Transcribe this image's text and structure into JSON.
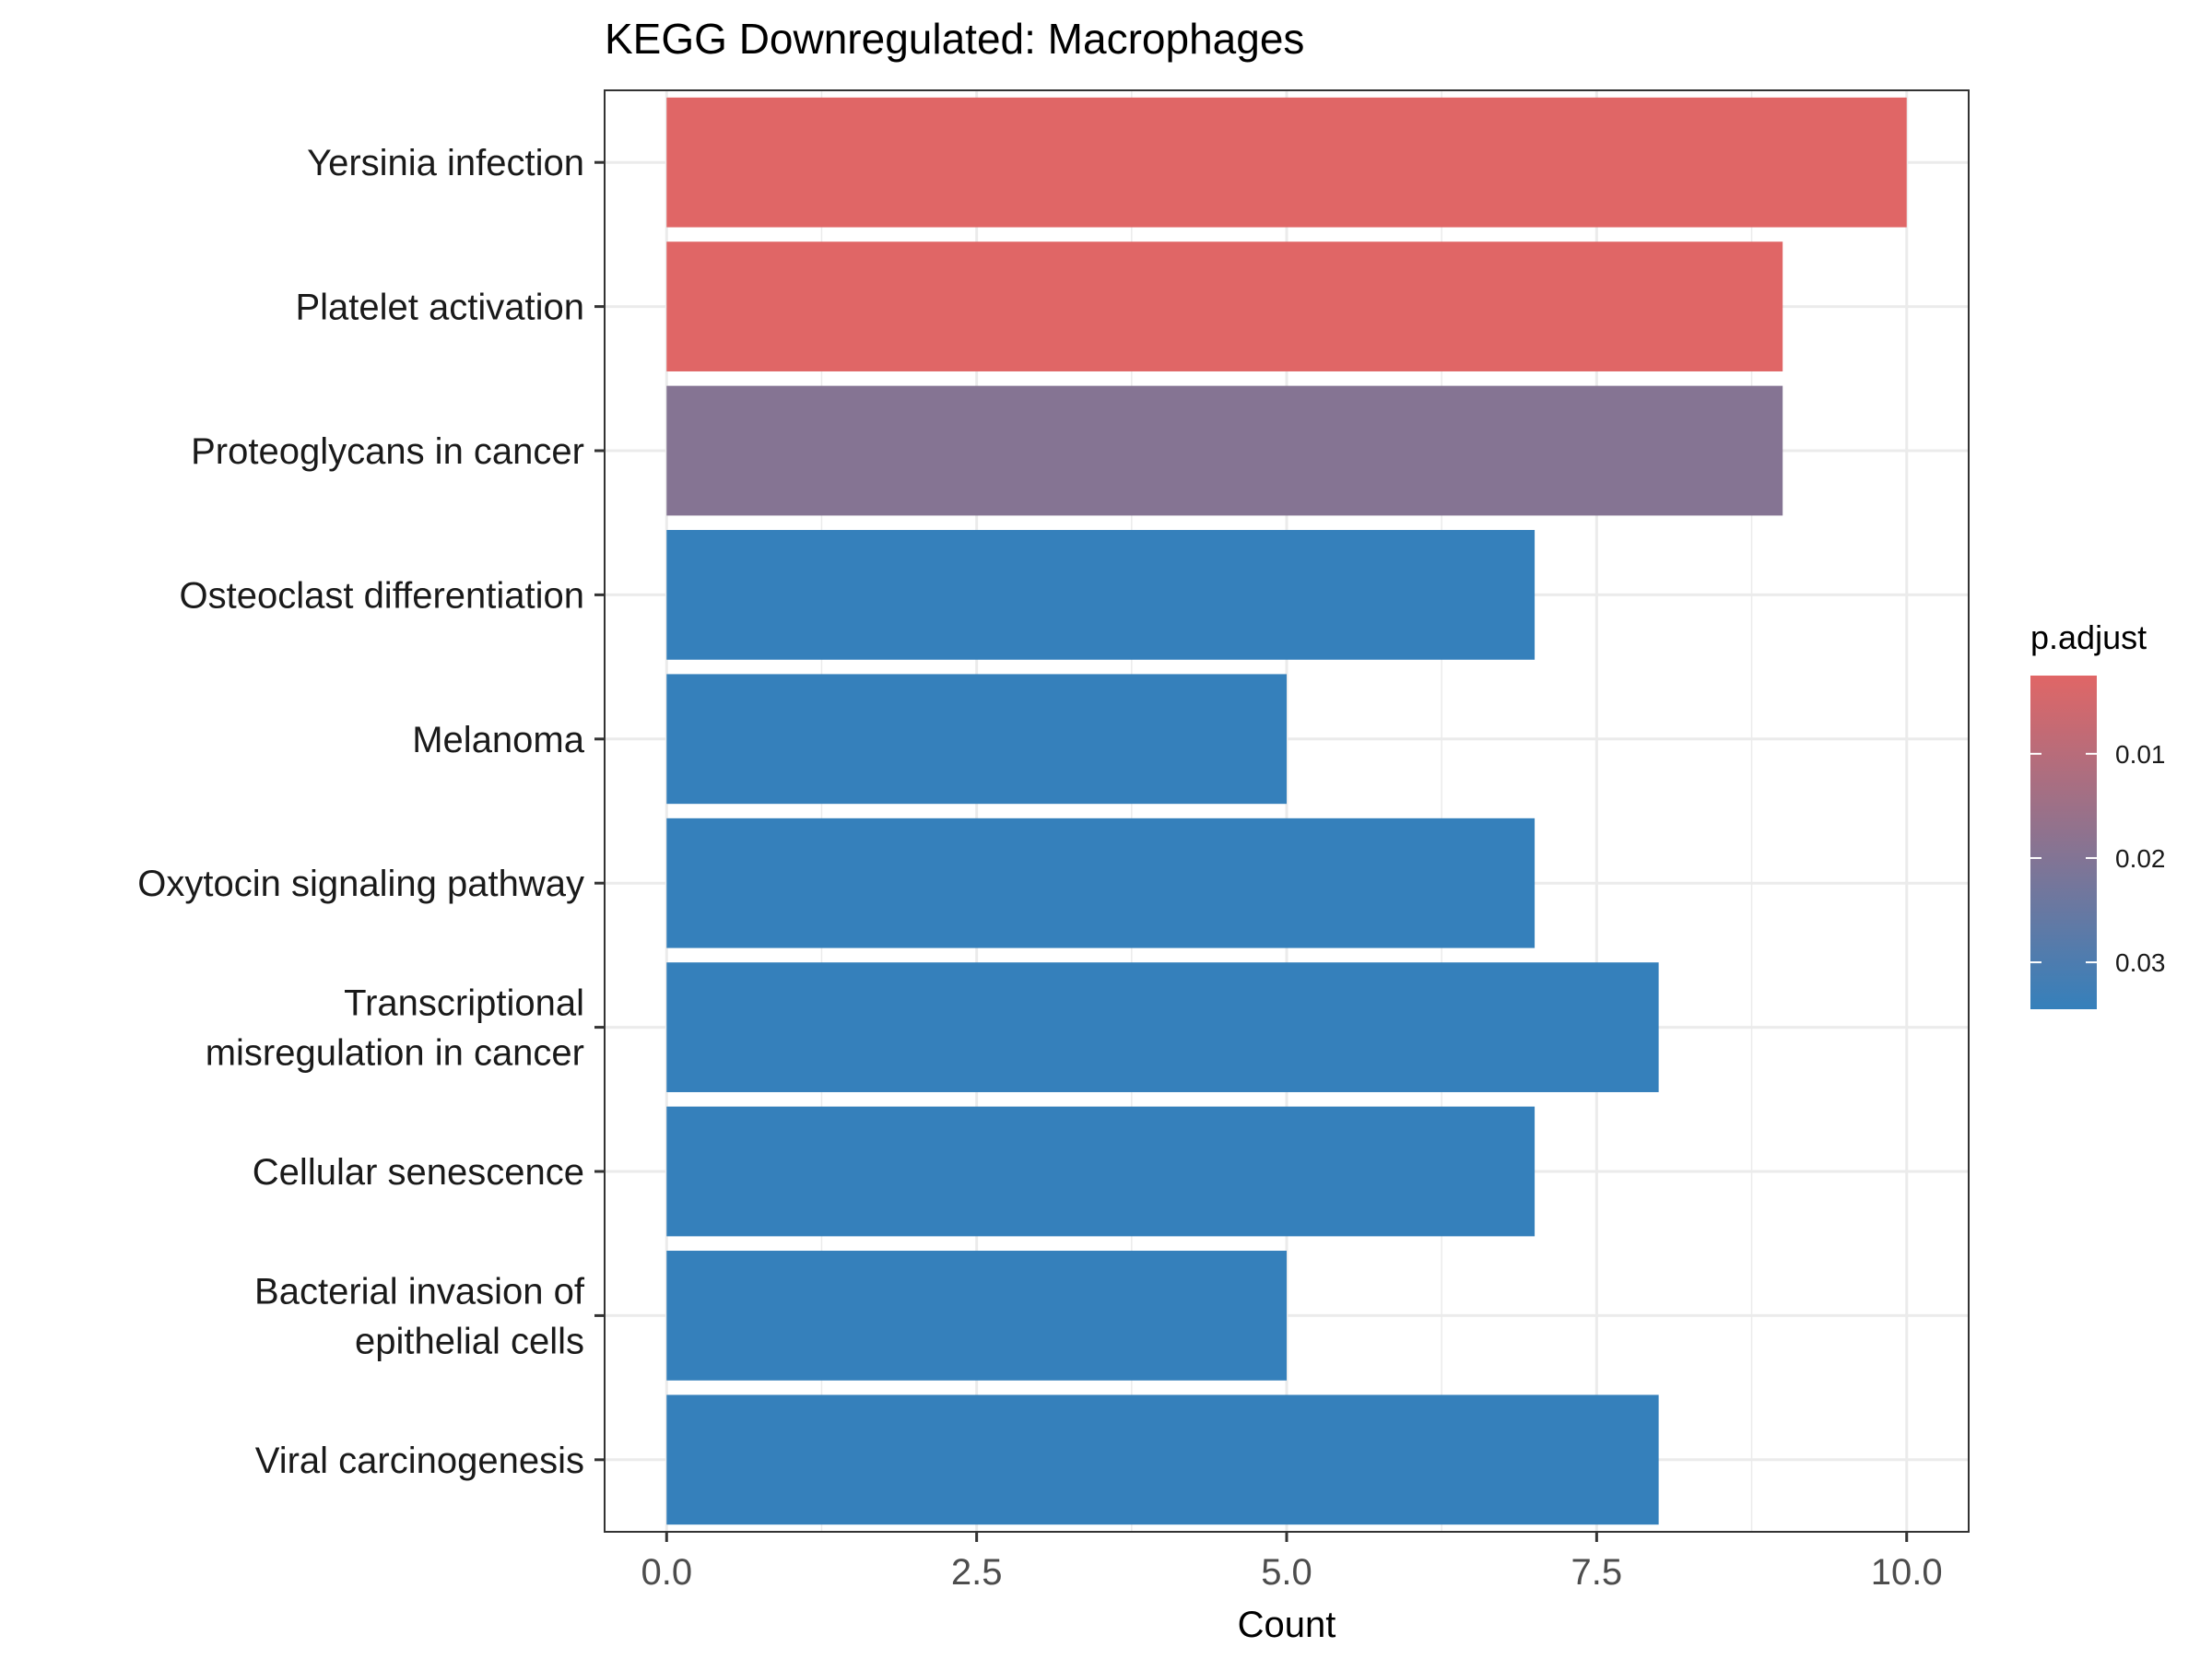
{
  "chart_data": {
    "type": "bar",
    "orientation": "horizontal",
    "title": "KEGG Downregulated: Macrophages",
    "xlabel": "Count",
    "ylabel": "",
    "xlim": [
      -0.5,
      10.5
    ],
    "x_ticks": [
      "0.0",
      "2.5",
      "5.0",
      "7.5",
      "10.0"
    ],
    "grid": true,
    "categories": [
      "Yersinia infection",
      "Platelet activation",
      "Proteoglycans in cancer",
      "Osteoclast differentiation",
      "Melanoma",
      "Oxytocin signaling pathway",
      "Transcriptional\nmisregulation in cancer",
      "Cellular senescence",
      "Bacterial invasion of\nepithelial cells",
      "Viral carcinogenesis"
    ],
    "values": [
      10,
      9,
      9,
      7,
      5,
      7,
      8,
      7,
      5,
      8
    ],
    "p_adjust": [
      0.0025,
      0.0025,
      0.0195,
      0.0345,
      0.0345,
      0.0345,
      0.0345,
      0.0345,
      0.0345,
      0.0345
    ],
    "legend": {
      "title": "p.adjust",
      "placement": "right",
      "range": [
        0.0025,
        0.0345
      ],
      "ticks": [
        0.01,
        0.02,
        0.03
      ],
      "tick_labels": [
        "0.01",
        "0.02",
        "0.03"
      ],
      "color_low_value": "#E06666",
      "color_high_value": "#3580BB"
    },
    "colors": {
      "low_p": "#E06666",
      "high_p": "#3580BB",
      "grid": "#EBEBEB",
      "panel_border": "#333333"
    }
  }
}
